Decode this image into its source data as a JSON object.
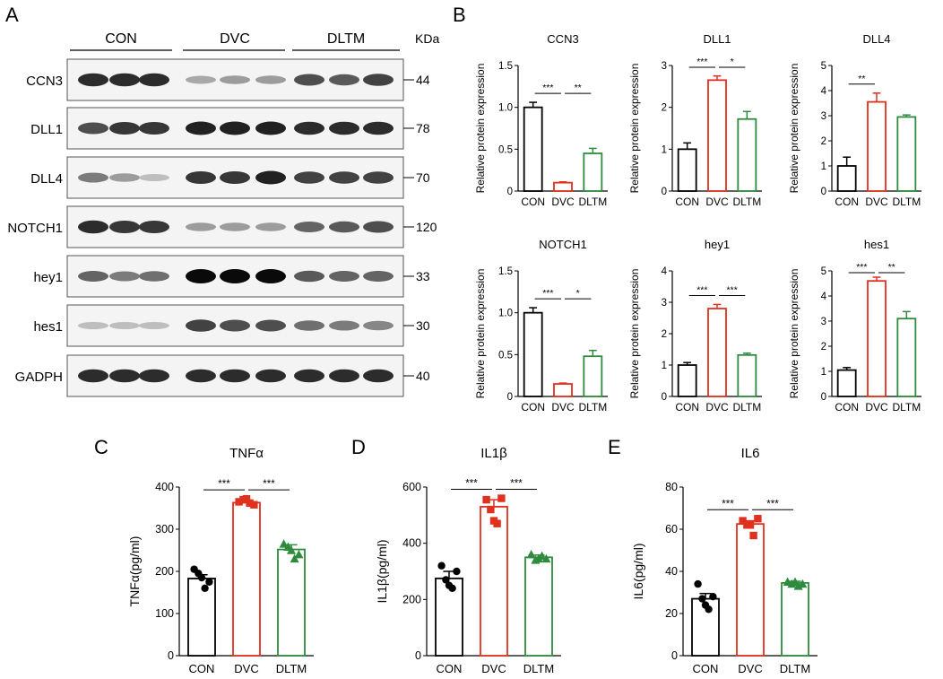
{
  "panel_labels": {
    "A": "A",
    "B": "B",
    "C": "C",
    "D": "D",
    "E": "E"
  },
  "blot": {
    "groups": [
      "CON",
      "DVC",
      "DLTM"
    ],
    "kda_label": "KDa",
    "rows": [
      {
        "name": "CCN3",
        "kda": "44",
        "intensity": [
          0.85,
          0.85,
          0.85,
          0.3,
          0.35,
          0.35,
          0.7,
          0.65,
          0.75
        ]
      },
      {
        "name": "DLL1",
        "kda": "78",
        "intensity": [
          0.7,
          0.8,
          0.8,
          0.9,
          0.9,
          0.9,
          0.85,
          0.85,
          0.85
        ]
      },
      {
        "name": "DLL4",
        "kda": "70",
        "intensity": [
          0.5,
          0.35,
          0.2,
          0.8,
          0.8,
          0.9,
          0.75,
          0.75,
          0.75
        ]
      },
      {
        "name": "NOTCH1",
        "kda": "120",
        "intensity": [
          0.85,
          0.8,
          0.8,
          0.35,
          0.35,
          0.35,
          0.6,
          0.65,
          0.7
        ]
      },
      {
        "name": "hey1",
        "kda": "33",
        "intensity": [
          0.6,
          0.5,
          0.55,
          1.0,
          1.0,
          1.0,
          0.65,
          0.6,
          0.6
        ]
      },
      {
        "name": "hes1",
        "kda": "30",
        "intensity": [
          0.2,
          0.2,
          0.2,
          0.75,
          0.7,
          0.7,
          0.55,
          0.5,
          0.45
        ]
      },
      {
        "name": "GADPH",
        "kda": "40",
        "intensity": [
          0.85,
          0.85,
          0.85,
          0.85,
          0.85,
          0.85,
          0.85,
          0.85,
          0.85
        ]
      }
    ]
  },
  "colors": {
    "CON": "#000000",
    "DVC": "#e0301e",
    "DLTM": "#2e8b3e"
  },
  "chart_data": [
    {
      "type": "bar",
      "title": "CCN3",
      "ylabel": "Relative protein expression",
      "categories": [
        "CON",
        "DVC",
        "DLTM"
      ],
      "values": [
        1.0,
        0.1,
        0.45
      ],
      "errors": [
        0.06,
        0.01,
        0.06
      ],
      "ylim": [
        0,
        1.5
      ],
      "yticks": [
        "0",
        "0.5",
        "1.0",
        "1.5"
      ],
      "significance": [
        {
          "from": 0,
          "to": 1,
          "label": "***"
        },
        {
          "from": 1,
          "to": 2,
          "label": "**"
        }
      ]
    },
    {
      "type": "bar",
      "title": "DLL1",
      "ylabel": "Relative protein expression",
      "categories": [
        "CON",
        "DVC",
        "DLTM"
      ],
      "values": [
        1.0,
        2.65,
        1.72
      ],
      "errors": [
        0.15,
        0.1,
        0.18
      ],
      "ylim": [
        0,
        3
      ],
      "yticks": [
        "0",
        "1",
        "2",
        "3"
      ],
      "significance": [
        {
          "from": 0,
          "to": 1,
          "label": "***"
        },
        {
          "from": 1,
          "to": 2,
          "label": "*"
        }
      ]
    },
    {
      "type": "bar",
      "title": "DLL4",
      "ylabel": "Relative protein expression",
      "categories": [
        "CON",
        "DVC",
        "DLTM"
      ],
      "values": [
        1.0,
        3.55,
        2.95
      ],
      "errors": [
        0.35,
        0.35,
        0.08
      ],
      "ylim": [
        0,
        5
      ],
      "yticks": [
        "0",
        "1",
        "2",
        "3",
        "4",
        "5"
      ],
      "significance": [
        {
          "from": 0,
          "to": 1,
          "label": "**"
        }
      ]
    },
    {
      "type": "bar",
      "title": "NOTCH1",
      "ylabel": "Relative protein expression",
      "categories": [
        "CON",
        "DVC",
        "DLTM"
      ],
      "values": [
        1.0,
        0.15,
        0.48
      ],
      "errors": [
        0.06,
        0.01,
        0.07
      ],
      "ylim": [
        0,
        1.5
      ],
      "yticks": [
        "0",
        "0.5",
        "1.0",
        "1.5"
      ],
      "significance": [
        {
          "from": 0,
          "to": 1,
          "label": "***"
        },
        {
          "from": 1,
          "to": 2,
          "label": "*"
        }
      ]
    },
    {
      "type": "bar",
      "title": "hey1",
      "ylabel": "Relative protein expression",
      "categories": [
        "CON",
        "DVC",
        "DLTM"
      ],
      "values": [
        1.0,
        2.8,
        1.32
      ],
      "errors": [
        0.08,
        0.13,
        0.06
      ],
      "ylim": [
        0,
        4
      ],
      "yticks": [
        "0",
        "1",
        "2",
        "3",
        "4"
      ],
      "significance": [
        {
          "from": 0,
          "to": 1,
          "label": "***"
        },
        {
          "from": 1,
          "to": 2,
          "label": "***"
        }
      ]
    },
    {
      "type": "bar",
      "title": "hes1",
      "ylabel": "Relative protein expression",
      "categories": [
        "CON",
        "DVC",
        "DLTM"
      ],
      "values": [
        1.05,
        4.6,
        3.1
      ],
      "errors": [
        0.1,
        0.15,
        0.28
      ],
      "ylim": [
        0,
        5
      ],
      "yticks": [
        "0",
        "1",
        "2",
        "3",
        "4",
        "5"
      ],
      "significance": [
        {
          "from": 0,
          "to": 1,
          "label": "***"
        },
        {
          "from": 1,
          "to": 2,
          "label": "**"
        }
      ]
    },
    {
      "type": "bar",
      "title": "TNFα",
      "ylabel": "TNFα(pg/ml)",
      "categories": [
        "CON",
        "DVC",
        "DLTM"
      ],
      "values": [
        183,
        363,
        252
      ],
      "errors": [
        9,
        5,
        11
      ],
      "ylim": [
        0,
        400
      ],
      "yticks": [
        "0",
        "100",
        "200",
        "300",
        "400"
      ],
      "points": [
        [
          205,
          175,
          195,
          160,
          185
        ],
        [
          365,
          358,
          370,
          362,
          372
        ],
        [
          265,
          240,
          258,
          230,
          250
        ]
      ],
      "markers": [
        "circle",
        "square",
        "triangle"
      ],
      "significance": [
        {
          "from": 0,
          "to": 1,
          "label": "***"
        },
        {
          "from": 1,
          "to": 2,
          "label": "***"
        }
      ]
    },
    {
      "type": "bar",
      "title": "IL1β",
      "ylabel": "IL1β(pg/ml)",
      "categories": [
        "CON",
        "DVC",
        "DLTM"
      ],
      "values": [
        275,
        530,
        350
      ],
      "errors": [
        25,
        25,
        8
      ],
      "ylim": [
        0,
        600
      ],
      "yticks": [
        "0",
        "200",
        "400",
        "600"
      ],
      "points": [
        [
          320,
          300,
          270,
          240,
          250
        ],
        [
          555,
          560,
          520,
          470,
          480
        ],
        [
          360,
          345,
          340,
          355,
          345
        ]
      ],
      "markers": [
        "circle",
        "square",
        "triangle"
      ],
      "significance": [
        {
          "from": 0,
          "to": 1,
          "label": "***"
        },
        {
          "from": 1,
          "to": 2,
          "label": "***"
        }
      ]
    },
    {
      "type": "bar",
      "title": "IL6",
      "ylabel": "IL6(pg/ml)",
      "categories": [
        "CON",
        "DVC",
        "DLTM"
      ],
      "values": [
        27,
        62.5,
        34.5
      ],
      "errors": [
        2.5,
        1.5,
        0.8
      ],
      "ylim": [
        0,
        80
      ],
      "yticks": [
        "0",
        "20",
        "40",
        "60",
        "80"
      ],
      "points": [
        [
          34,
          28,
          27,
          22,
          24
        ],
        [
          64,
          65,
          62,
          57,
          62
        ],
        [
          35,
          34,
          34,
          33,
          35
        ]
      ],
      "markers": [
        "circle",
        "square",
        "triangle"
      ],
      "significance": [
        {
          "from": 0,
          "to": 1,
          "label": "***"
        },
        {
          "from": 1,
          "to": 2,
          "label": "***"
        }
      ]
    }
  ]
}
